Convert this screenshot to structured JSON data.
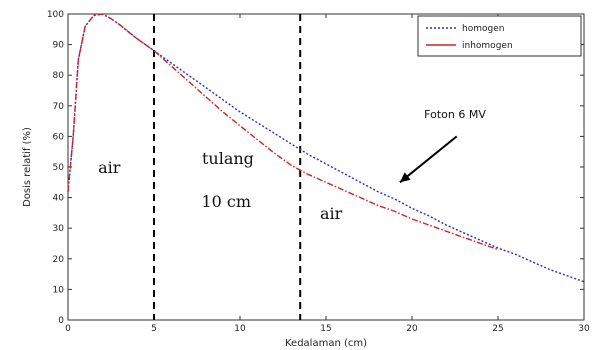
{
  "chart_data": {
    "type": "line",
    "title": "",
    "xlabel": "Kedalaman (cm)",
    "ylabel": "Dosis relatif (%)",
    "xlim": [
      0,
      30
    ],
    "ylim": [
      0,
      100
    ],
    "xticks": [
      0,
      5,
      10,
      15,
      20,
      25,
      30
    ],
    "yticks": [
      0,
      10,
      20,
      30,
      40,
      50,
      60,
      70,
      80,
      90,
      100
    ],
    "grid": false,
    "legend_position": "top-right",
    "series": [
      {
        "name": "homogen",
        "color": "#2b2bc8",
        "dash": "dotted",
        "x": [
          0,
          0.3,
          0.6,
          1.0,
          1.5,
          2.0,
          2.5,
          3,
          4,
          5,
          6,
          7,
          8,
          9,
          10,
          11,
          12,
          13,
          14,
          15,
          16,
          17,
          18,
          19,
          20,
          21,
          22,
          23,
          24,
          25,
          26,
          27,
          28,
          29,
          30
        ],
        "values": [
          42,
          60,
          85,
          96,
          99.5,
          100,
          98.5,
          96.5,
          92,
          88,
          84,
          80,
          76,
          72,
          68,
          64.5,
          61,
          57.5,
          54,
          51,
          48,
          45,
          42,
          39.5,
          36.5,
          34,
          31,
          28.5,
          26,
          23.5,
          21.5,
          19,
          16.5,
          14.5,
          12.5
        ]
      },
      {
        "name": "inhomogen",
        "color": "#d42020",
        "dash": "dash-dot",
        "x": [
          0,
          0.3,
          0.6,
          1.0,
          1.5,
          2.0,
          2.5,
          3,
          4,
          5,
          6,
          7,
          8,
          9,
          10,
          11,
          12,
          13,
          14,
          15,
          16,
          17,
          18,
          19,
          20,
          21,
          22,
          23,
          24,
          25
        ],
        "values": [
          42,
          60,
          85,
          96,
          99.5,
          100,
          98.5,
          96.5,
          92,
          88,
          83,
          78,
          73,
          68,
          63.5,
          59,
          54.5,
          50.5,
          47.5,
          45,
          42.5,
          40,
          37.5,
          35.5,
          33,
          31,
          29,
          27,
          25,
          23
        ]
      }
    ],
    "vlines": [
      5,
      13.5
    ],
    "annotations": [
      {
        "text": "air",
        "x": 2.4,
        "y": 48
      },
      {
        "text": "tulang",
        "x": 9.3,
        "y": 51
      },
      {
        "text": "10 cm",
        "x": 9.2,
        "y": 37
      },
      {
        "text": "air",
        "x": 15.3,
        "y": 33
      },
      {
        "text": "Foton 6 MV",
        "x": 22.5,
        "y": 66
      }
    ],
    "arrow": {
      "from": [
        22.6,
        60
      ],
      "to": [
        19.3,
        45
      ]
    }
  }
}
